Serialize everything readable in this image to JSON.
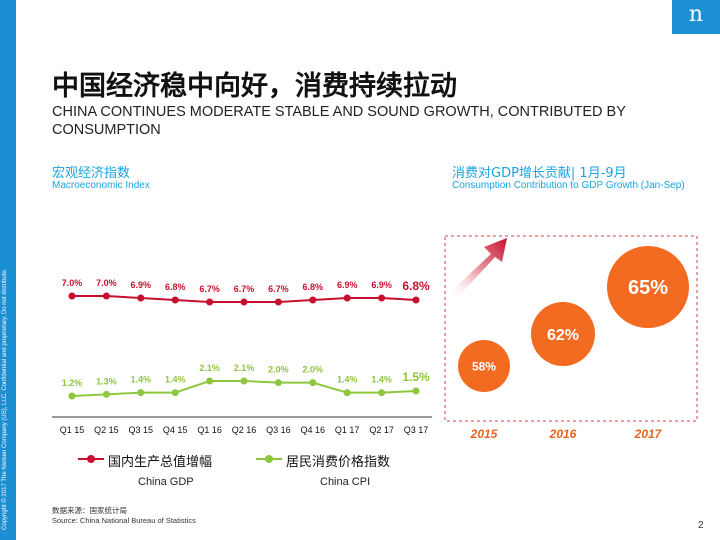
{
  "logo_text": "n",
  "copyright": "Copyright © 2017 The Nielsen Company (US), LLC. Confidential and proprietary. Do not distribute.",
  "title_cn": "中国经济稳中向好，消费持续拉动",
  "title_en": "CHINA CONTINUES MODERATE STABLE AND SOUND GROWTH, CONTRIBUTED BY CONSUMPTION",
  "left_section": {
    "title_cn": "宏观经济指数",
    "title_en": "Macroeconomic Index"
  },
  "right_section": {
    "title_cn": "消费对GDP增长贡献| 1月-9月",
    "title_en": "Consumption Contribution to GDP Growth (Jan-Sep)"
  },
  "legend": {
    "gdp_cn": "国内生产总值增幅",
    "gdp_en": "China GDP",
    "cpi_cn": "居民消费价格指数",
    "cpi_en": "China CPI"
  },
  "source_cn": "数据来源：国家统计局",
  "source_en": "Source: China National Bureau of Statistics",
  "page_number": "2",
  "colors": {
    "gdp": "#c8102e",
    "cpi": "#8dc63f",
    "bubble": "#f26b21",
    "accent": "#1aa3e0",
    "year": "#e8641e"
  },
  "chart_data": [
    {
      "type": "line",
      "categories": [
        "Q1 15",
        "Q2 15",
        "Q3 15",
        "Q4 15",
        "Q1 16",
        "Q2 16",
        "Q3 16",
        "Q4 16",
        "Q1 17",
        "Q2 17",
        "Q3 17"
      ],
      "series": [
        {
          "name": "国内生产总值增幅 China GDP",
          "values": [
            7.0,
            7.0,
            6.9,
            6.8,
            6.7,
            6.7,
            6.7,
            6.8,
            6.9,
            6.9,
            6.8
          ],
          "labels": [
            "7.0%",
            "7.0%",
            "6.9%",
            "6.8%",
            "6.7%",
            "6.7%",
            "6.7%",
            "6.8%",
            "6.9%",
            "6.9%",
            "6.8%"
          ]
        },
        {
          "name": "居民消费价格指数 China CPI",
          "values": [
            1.2,
            1.3,
            1.4,
            1.4,
            2.1,
            2.1,
            2.0,
            2.0,
            1.4,
            1.4,
            1.5
          ],
          "labels": [
            "1.2%",
            "1.3%",
            "1.4%",
            "1.4%",
            "2.1%",
            "2.1%",
            "2.0%",
            "2.0%",
            "1.4%",
            "1.4%",
            "1.5%"
          ]
        }
      ]
    },
    {
      "type": "bubble",
      "categories": [
        "2015",
        "2016",
        "2017"
      ],
      "values": [
        58,
        62,
        65
      ],
      "labels": [
        "58%",
        "62%",
        "65%"
      ]
    }
  ]
}
